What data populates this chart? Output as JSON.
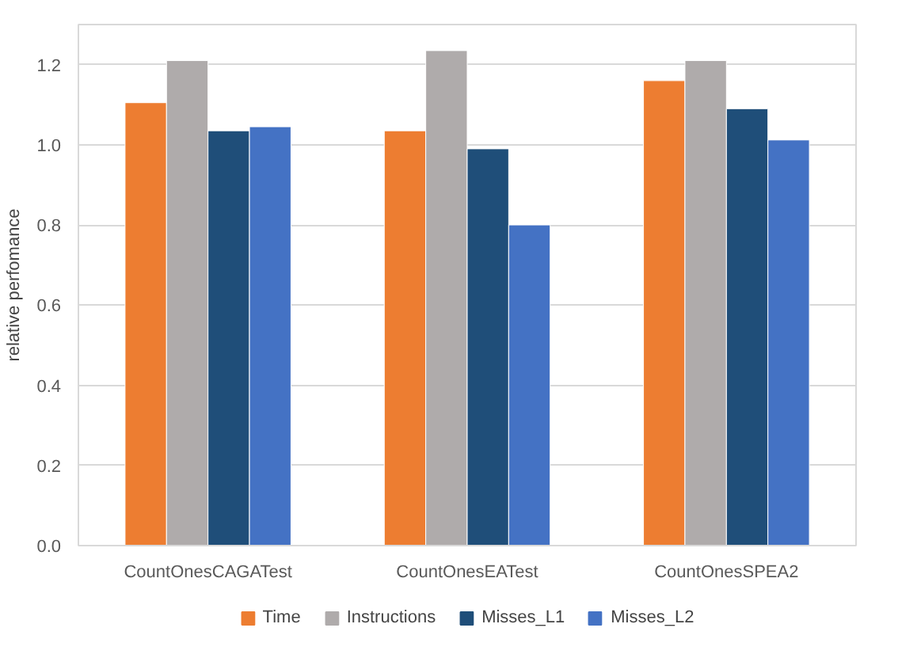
{
  "chart_data": {
    "type": "bar",
    "ylabel": "relative perfomance",
    "categories": [
      "CountOnesCAGATest",
      "CountOnesEATest",
      "CountOnesSPEA2"
    ],
    "series": [
      {
        "name": "Time",
        "color": "#ed7d31",
        "values": [
          1.105,
          1.035,
          1.16
        ]
      },
      {
        "name": "Instructions",
        "color": "#afabab",
        "values": [
          1.21,
          1.235,
          1.21
        ]
      },
      {
        "name": "Misses_L1",
        "color": "#1f4e79",
        "values": [
          1.035,
          0.99,
          1.09
        ]
      },
      {
        "name": "Misses_L2",
        "color": "#4472c4",
        "values": [
          1.045,
          0.8,
          1.012
        ]
      }
    ],
    "ylim": [
      0,
      1.3
    ],
    "yticks": [
      {
        "value": 0,
        "label": "0.0"
      },
      0.2,
      0.4,
      0.6,
      0.8,
      {
        "value": 1,
        "label": "1.0"
      },
      1.2
    ],
    "grid": "y",
    "legend": "bottom"
  }
}
